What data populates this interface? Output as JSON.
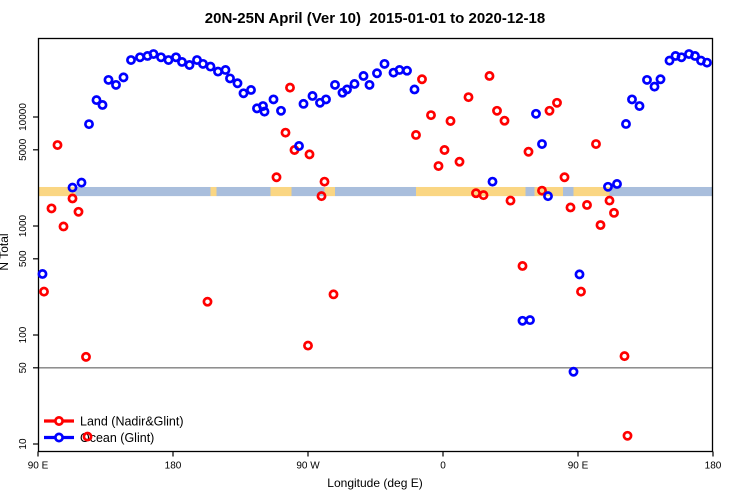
{
  "title": "20N-25N April (Ver 10)  2015-01-01 to 2020-12-18",
  "chart_data": {
    "type": "scatter",
    "xlabel": "Longitude (deg E)",
    "ylabel": "N Total",
    "x_axis": {
      "range": [
        90,
        540
      ],
      "ticks": [
        90,
        180,
        270,
        360,
        450,
        540
      ],
      "tick_labels": [
        "90 E",
        "180",
        "90 W",
        "0",
        "90 E",
        "180"
      ]
    },
    "y_axis": {
      "scale": "log",
      "range": [
        8.5,
        52000
      ],
      "ticks": [
        10,
        50,
        100,
        500,
        1000,
        5000,
        10000
      ],
      "tick_labels": [
        "10",
        "50",
        "100",
        "500",
        "1000",
        "5000",
        "10000"
      ]
    },
    "reference_line": {
      "value": 50,
      "color": "#7f7f7f"
    },
    "surface_band": {
      "value_range": [
        1880,
        2280
      ],
      "land_color": "#FAD683",
      "ocean_color": "#A9BEDC",
      "segments": [
        {
          "from": 90,
          "to": 115,
          "type": "land"
        },
        {
          "from": 115,
          "to": 205,
          "type": "ocean"
        },
        {
          "from": 205,
          "to": 209,
          "type": "land"
        },
        {
          "from": 209,
          "to": 245,
          "type": "ocean"
        },
        {
          "from": 245,
          "to": 259,
          "type": "land"
        },
        {
          "from": 259,
          "to": 281,
          "type": "ocean"
        },
        {
          "from": 281,
          "to": 288,
          "type": "land"
        },
        {
          "from": 288,
          "to": 342,
          "type": "ocean"
        },
        {
          "from": 342,
          "to": 415,
          "type": "land"
        },
        {
          "from": 415,
          "to": 421,
          "type": "ocean"
        },
        {
          "from": 421,
          "to": 440,
          "type": "land"
        },
        {
          "from": 440,
          "to": 447,
          "type": "ocean"
        },
        {
          "from": 447,
          "to": 471,
          "type": "land"
        },
        {
          "from": 471,
          "to": 540,
          "type": "ocean"
        }
      ]
    },
    "legend": {
      "entries": [
        "Land (Nadir&Glint)",
        "Ocean (Glint)"
      ]
    },
    "series": [
      {
        "name": "Land (Nadir&Glint)",
        "color": "#ff0000",
        "points": [
          [
            103,
            5530
          ],
          [
            99,
            1450
          ],
          [
            113,
            1790
          ],
          [
            117,
            1350
          ],
          [
            107,
            990
          ],
          [
            94,
            250
          ],
          [
            122,
            63
          ],
          [
            123,
            11.7
          ],
          [
            203,
            202
          ],
          [
            249,
            2800
          ],
          [
            255,
            7180
          ],
          [
            258,
            18600
          ],
          [
            261,
            4980
          ],
          [
            271,
            4540
          ],
          [
            270,
            80
          ],
          [
            279,
            1880
          ],
          [
            281,
            2550
          ],
          [
            287,
            236
          ],
          [
            342,
            6840
          ],
          [
            346,
            22200
          ],
          [
            352,
            10400
          ],
          [
            357,
            3550
          ],
          [
            361,
            4980
          ],
          [
            365,
            9190
          ],
          [
            371,
            3890
          ],
          [
            377,
            15200
          ],
          [
            382,
            2000
          ],
          [
            387,
            1920
          ],
          [
            391,
            23800
          ],
          [
            396,
            11400
          ],
          [
            401,
            9250
          ],
          [
            405,
            1710
          ],
          [
            413,
            430
          ],
          [
            417,
            4800
          ],
          [
            426,
            2110
          ],
          [
            431,
            11400
          ],
          [
            436,
            13500
          ],
          [
            441,
            2800
          ],
          [
            445,
            1480
          ],
          [
            452,
            250
          ],
          [
            456,
            1560
          ],
          [
            462,
            5650
          ],
          [
            465,
            1020
          ],
          [
            471,
            1710
          ],
          [
            474,
            1320
          ],
          [
            481,
            64
          ],
          [
            483,
            11.9
          ]
        ]
      },
      {
        "name": "Ocean (Glint)",
        "color": "#0000ff",
        "points": [
          [
            93,
            363
          ],
          [
            113,
            2250
          ],
          [
            119,
            2500
          ],
          [
            124,
            8600
          ],
          [
            129,
            14300
          ],
          [
            133,
            12900
          ],
          [
            137,
            21900
          ],
          [
            142,
            19700
          ],
          [
            147,
            23100
          ],
          [
            152,
            33300
          ],
          [
            158,
            35300
          ],
          [
            163,
            36300
          ],
          [
            167,
            37800
          ],
          [
            172,
            35300
          ],
          [
            177,
            33300
          ],
          [
            182,
            35300
          ],
          [
            186,
            32000
          ],
          [
            191,
            30000
          ],
          [
            196,
            33300
          ],
          [
            200,
            30700
          ],
          [
            205,
            29000
          ],
          [
            210,
            26100
          ],
          [
            215,
            27000
          ],
          [
            218,
            22600
          ],
          [
            223,
            20400
          ],
          [
            227,
            16500
          ],
          [
            232,
            17700
          ],
          [
            236,
            12000
          ],
          [
            240,
            12600
          ],
          [
            241,
            11200
          ],
          [
            247,
            14500
          ],
          [
            252,
            11400
          ],
          [
            264,
            5420
          ],
          [
            267,
            13200
          ],
          [
            273,
            15600
          ],
          [
            278,
            13500
          ],
          [
            282,
            14500
          ],
          [
            288,
            19700
          ],
          [
            293,
            16700
          ],
          [
            296,
            17900
          ],
          [
            301,
            20100
          ],
          [
            307,
            23800
          ],
          [
            311,
            19700
          ],
          [
            316,
            25200
          ],
          [
            321,
            30700
          ],
          [
            327,
            25500
          ],
          [
            331,
            27000
          ],
          [
            336,
            26600
          ],
          [
            341,
            17900
          ],
          [
            393,
            2550
          ],
          [
            413,
            135
          ],
          [
            418,
            137
          ],
          [
            422,
            10700
          ],
          [
            426,
            5650
          ],
          [
            430,
            1880
          ],
          [
            447,
            46
          ],
          [
            451,
            360
          ],
          [
            470,
            2290
          ],
          [
            476,
            2430
          ],
          [
            482,
            8630
          ],
          [
            486,
            14500
          ],
          [
            491,
            12600
          ],
          [
            496,
            21900
          ],
          [
            501,
            19000
          ],
          [
            505,
            22200
          ],
          [
            511,
            32900
          ],
          [
            515,
            36300
          ],
          [
            519,
            35300
          ],
          [
            524,
            37800
          ],
          [
            528,
            36300
          ],
          [
            532,
            32900
          ],
          [
            536,
            31500
          ]
        ]
      }
    ]
  }
}
